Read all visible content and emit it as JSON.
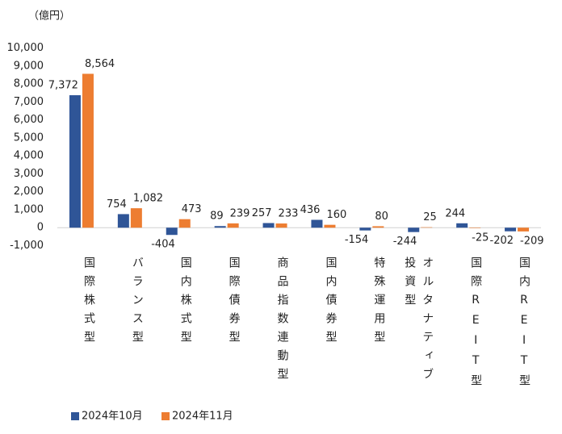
{
  "chart_data": {
    "type": "bar",
    "unit_label": "（億円）",
    "categories": [
      "国際株式型",
      "バランス型",
      "国内株式型",
      "国際債券型",
      "商品指数連動型",
      "国内債券型",
      "特殊運用型",
      "オルタナティブ投資型",
      "国際REIT型",
      "国内REIT型"
    ],
    "series": [
      {
        "name": "2024年10月",
        "color": "#2f5597",
        "values": [
          7372,
          754,
          -404,
          89,
          257,
          436,
          -154,
          -244,
          244,
          -202
        ],
        "value_labels": [
          "7,372",
          "754",
          "-404",
          "89",
          "257",
          "436",
          "-154",
          "-244",
          "244",
          "-202"
        ]
      },
      {
        "name": "2024年11月",
        "color": "#ed7d31",
        "values": [
          8564,
          1082,
          473,
          239,
          233,
          160,
          80,
          25,
          -25,
          -209
        ],
        "value_labels": [
          "8,564",
          "1,082",
          "473",
          "239",
          "233",
          "160",
          "80",
          "25",
          "-25",
          "-209"
        ]
      }
    ],
    "negative_label_color": "#ff0000",
    "ylim": [
      -1000,
      10000
    ],
    "yticks": [
      {
        "value": -1000,
        "label": "-1,000"
      },
      0,
      {
        "value": 1000,
        "label": "1,000"
      },
      {
        "value": 2000,
        "label": "2,000"
      },
      {
        "value": 3000,
        "label": "3,000"
      },
      {
        "value": 4000,
        "label": "4,000"
      },
      {
        "value": 5000,
        "label": "5,000"
      },
      {
        "value": 6000,
        "label": "6,000"
      },
      {
        "value": 7000,
        "label": "7,000"
      },
      {
        "value": 8000,
        "label": "8,000"
      },
      {
        "value": 9000,
        "label": "9,000"
      },
      {
        "value": 10000,
        "label": "10,000"
      }
    ],
    "legend": "bottom-left"
  }
}
